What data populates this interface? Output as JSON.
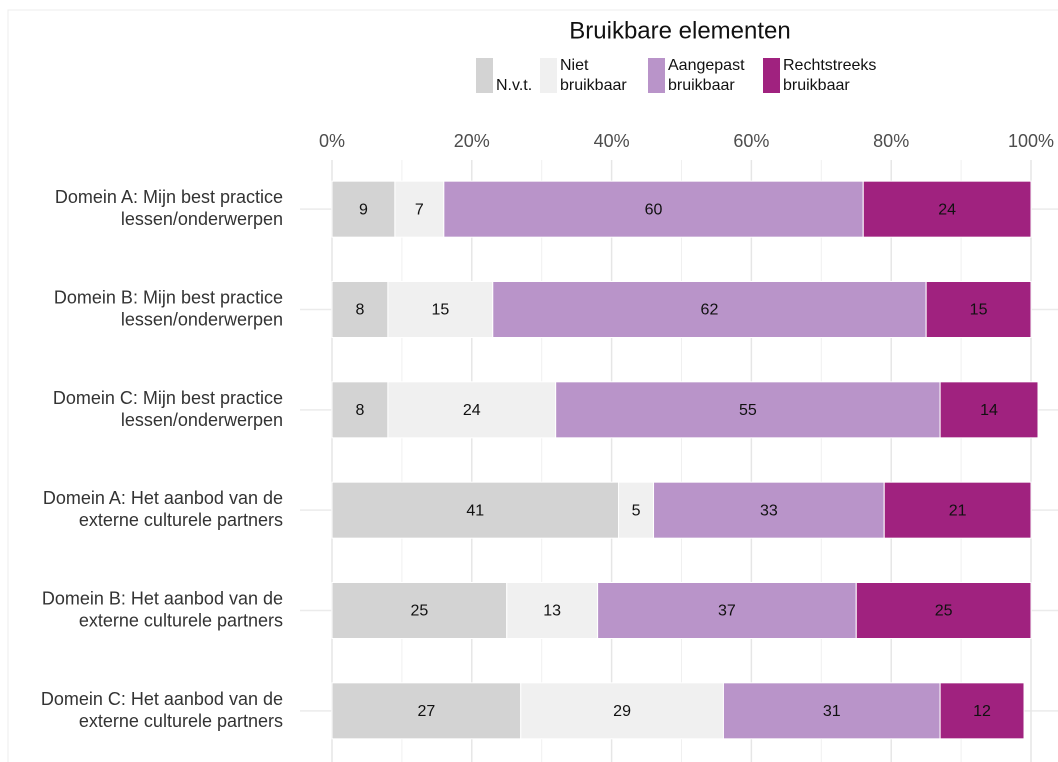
{
  "chart_data": {
    "type": "stacked_bar_horizontal",
    "title": "Bruikbare elementen",
    "categories": [
      "Domein A: Mijn best practice\nlessen/onderwerpen",
      "Domein B: Mijn best practice\nlessen/onderwerpen",
      "Domein C: Mijn best practice\nlessen/onderwerpen",
      "Domein A: Het aanbod van de\nexterne culturele partners",
      "Domein B: Het aanbod van de\nexterne culturele partners",
      "Domein C: Het aanbod van de\nexterne culturele partners"
    ],
    "series": [
      {
        "name": "N.v.t.",
        "color": "#d3d3d3",
        "values": [
          9,
          8,
          8,
          41,
          25,
          27
        ]
      },
      {
        "name": "Niet\nbruikbaar",
        "color": "#f0f0f0",
        "values": [
          7,
          15,
          24,
          5,
          13,
          29
        ]
      },
      {
        "name": "Aangepast\nbruikbaar",
        "color": "#b994c9",
        "values": [
          60,
          62,
          55,
          33,
          37,
          31
        ]
      },
      {
        "name": "Rechtstreeks\nbruikbaar",
        "color": "#a0227f",
        "values": [
          24,
          15,
          14,
          21,
          25,
          12
        ]
      }
    ],
    "xlim": [
      0,
      100
    ],
    "xticks": [
      {
        "value": 0,
        "label": "0%"
      },
      {
        "value": 20,
        "label": "20%"
      },
      {
        "value": 40,
        "label": "40%"
      },
      {
        "value": 60,
        "label": "60%"
      },
      {
        "value": 80,
        "label": "80%"
      },
      {
        "value": 100,
        "label": "100%"
      }
    ],
    "grid": true,
    "legend": "top"
  }
}
